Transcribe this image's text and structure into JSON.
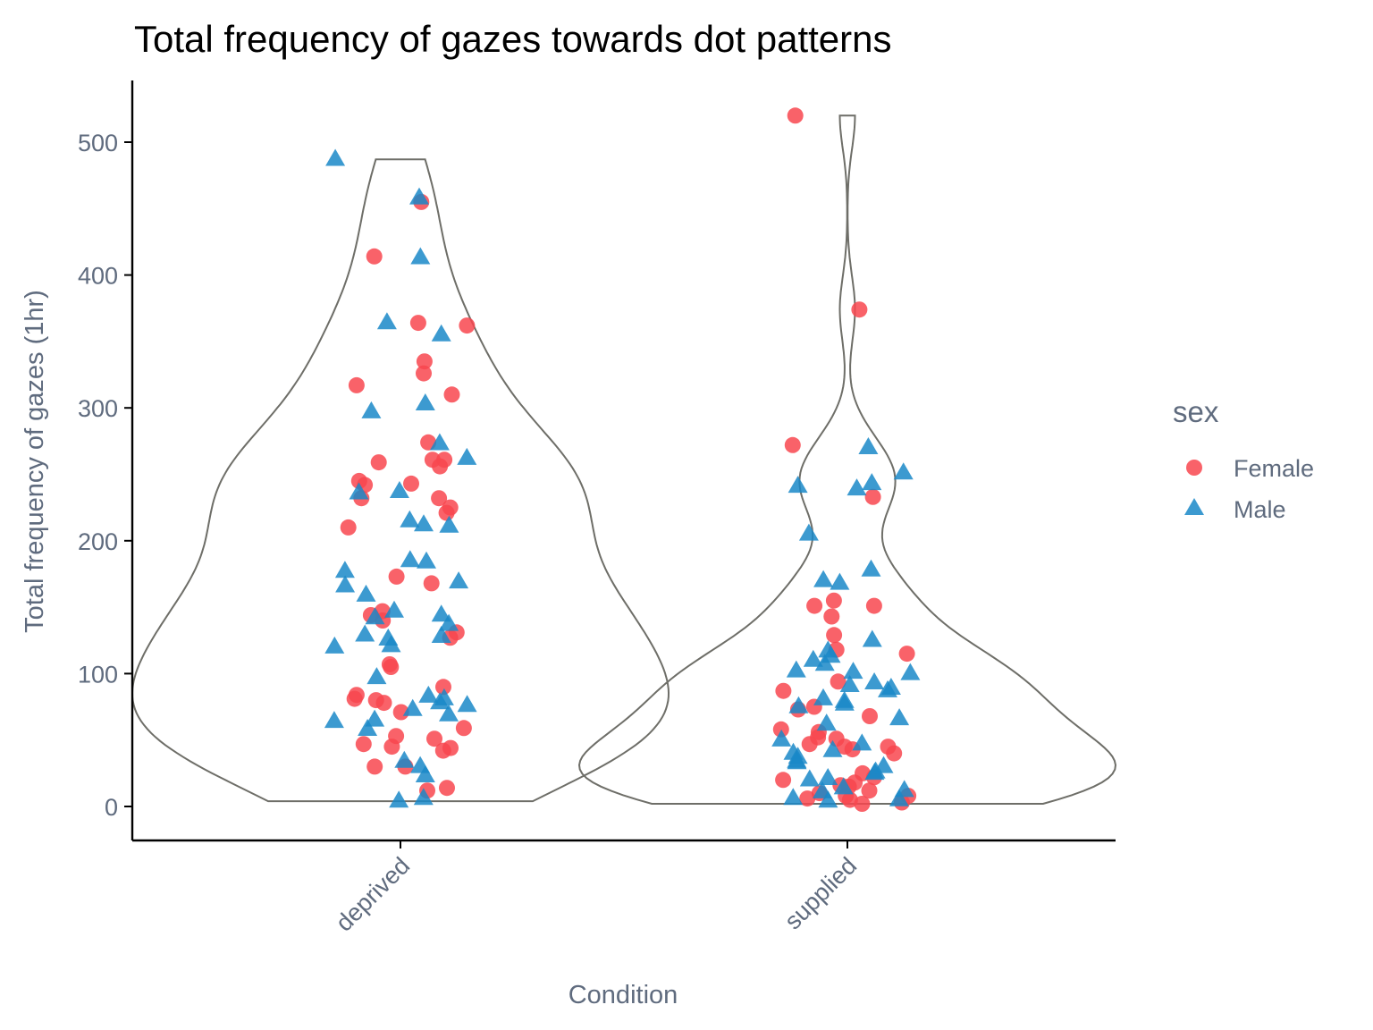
{
  "chart_data": {
    "type": "violin",
    "title": "Total frequency of gazes towards dot patterns",
    "xlabel": "Condition",
    "ylabel": "Total frequency of gazes (1hr)",
    "categories": [
      "deprived",
      "supplied"
    ],
    "yticks": [
      0,
      100,
      200,
      300,
      400,
      500
    ],
    "ylim": [
      -25,
      545
    ],
    "grid": false,
    "legend": {
      "title": "sex",
      "position": "right",
      "entries": [
        {
          "label": "Female",
          "shape": "circle",
          "color": "#f8464f"
        },
        {
          "label": "Male",
          "shape": "triangle",
          "color": "#1a88c8"
        }
      ]
    },
    "violin_color": "#6e6e68",
    "series": [
      {
        "name": "Female",
        "points": {
          "deprived": [
            455,
            414,
            364,
            362,
            335,
            326,
            317,
            310,
            274,
            261,
            261,
            259,
            256,
            245,
            243,
            242,
            232,
            232,
            225,
            221,
            210,
            173,
            168,
            147,
            144,
            140,
            131,
            127,
            107,
            105,
            90,
            84,
            81,
            80,
            78,
            71,
            59,
            53,
            51,
            47,
            45,
            44,
            42,
            30,
            30,
            14,
            12
          ],
          "supplied": [
            520,
            374,
            272,
            233,
            155,
            151,
            151,
            143,
            129,
            118,
            115,
            94,
            87,
            75,
            73,
            68,
            58,
            56,
            52,
            51,
            47,
            45,
            45,
            43,
            40,
            25,
            22,
            20,
            18,
            16,
            15,
            12,
            10,
            8,
            8,
            6,
            5,
            3,
            2
          ]
        }
      },
      {
        "name": "Male",
        "points": {
          "deprived": [
            487,
            458,
            413,
            364,
            355,
            303,
            297,
            273,
            262,
            237,
            236,
            215,
            212,
            211,
            185,
            184,
            177,
            169,
            166,
            159,
            147,
            144,
            142,
            137,
            129,
            128,
            126,
            121,
            120,
            97,
            83,
            81,
            78,
            76,
            73,
            69,
            65,
            64,
            58,
            34,
            30,
            23,
            6,
            4
          ],
          "supplied": [
            270,
            251,
            243,
            241,
            239,
            205,
            178,
            168,
            170,
            125,
            117,
            113,
            110,
            107,
            102,
            101,
            100,
            93,
            91,
            89,
            87,
            81,
            79,
            77,
            75,
            66,
            62,
            50,
            47,
            42,
            40,
            37,
            34,
            33,
            30,
            26,
            25,
            21,
            20,
            14,
            12,
            11,
            6,
            5,
            4
          ]
        }
      }
    ]
  }
}
